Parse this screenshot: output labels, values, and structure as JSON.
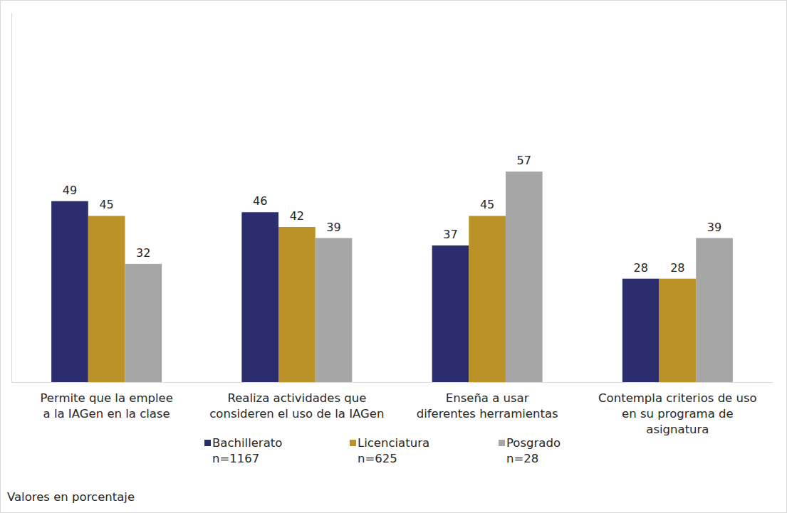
{
  "chart_data": {
    "type": "bar",
    "categories": [
      "Permite que la emplee\na la IAGen en la clase",
      "Realiza actividades que\nconsideren el uso de la IAGen",
      "Enseña a usar\ndiferentes herramientas",
      "Contempla criterios de uso\nen su programa de\nasignatura"
    ],
    "series": [
      {
        "name": "Bachillerato\nn=1167",
        "color": "#2b2d6e",
        "values": [
          49,
          46,
          37,
          28
        ]
      },
      {
        "name": "Licenciatura\nn=625",
        "color": "#bb9227",
        "values": [
          45,
          42,
          45,
          28
        ]
      },
      {
        "name": "Posgrado\nn=28",
        "color": "#a6a6a6",
        "values": [
          32,
          39,
          57,
          39
        ]
      }
    ],
    "ylim": [
      0,
      100
    ],
    "yticks": [],
    "tick_labels": "x",
    "grid": false,
    "data_labels": true,
    "legend": "bottom",
    "caption": "Valores en porcentaje"
  }
}
